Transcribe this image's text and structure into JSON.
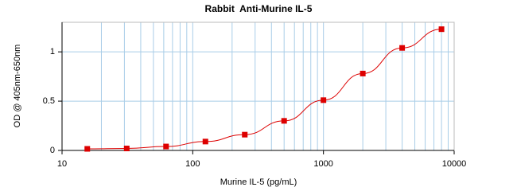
{
  "chart_data": {
    "type": "scatter",
    "title": "Rabbit  Anti-Murine IL-5",
    "x_label": "Murine IL-5 (pg/mL)",
    "y_label": "OD @ 405nm-650nm",
    "x_scale": "log",
    "grid": true,
    "xlim": [
      10,
      10000
    ],
    "xticks": [
      10,
      100,
      1000,
      10000
    ],
    "ylim": [
      0,
      1.3
    ],
    "yticks": [
      0,
      0.5,
      1
    ],
    "series": [
      {
        "color": "#dd0000",
        "x": [
          15.6,
          31.25,
          62.5,
          125,
          250,
          500,
          1000,
          2000,
          4000,
          8000
        ],
        "values": [
          0.016,
          0.02,
          0.04,
          0.09,
          0.16,
          0.3,
          0.51,
          0.78,
          1.04,
          1.23
        ]
      }
    ]
  }
}
